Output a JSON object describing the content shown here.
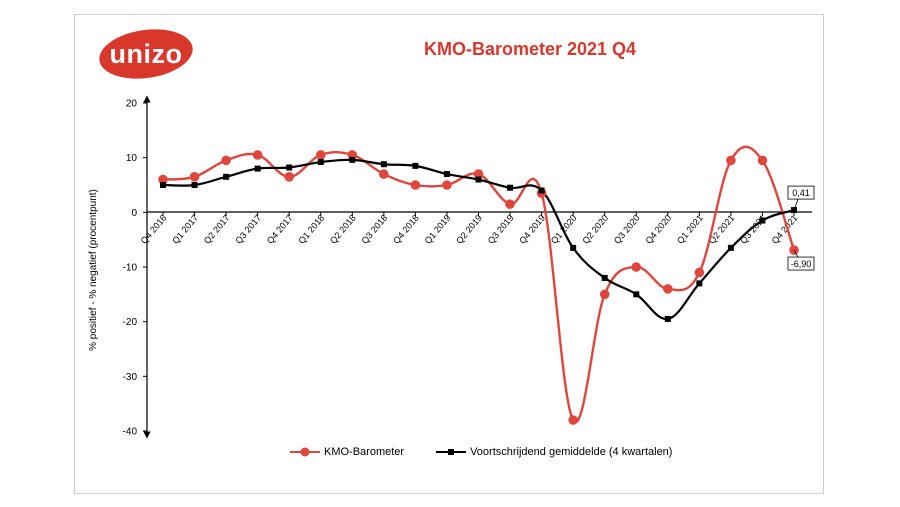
{
  "logo": {
    "text": "unizo",
    "color": "#d9372b"
  },
  "chart_data": {
    "type": "line",
    "title": "KMO-Barometer 2021 Q4",
    "xlabel": "",
    "ylabel": "% positief - % negatief (procentpunt)",
    "ylim": [
      -40,
      20
    ],
    "yticks": [
      "20",
      "10",
      "0",
      "-10",
      "-20",
      "-30",
      "-40"
    ],
    "categories": [
      "Q4 2016",
      "Q1 2017",
      "Q2 2017",
      "Q3 2017",
      "Q4 2017",
      "Q1 2018",
      "Q2 2018",
      "Q3 2018",
      "Q4 2018",
      "Q1 2019",
      "Q2 2019",
      "Q3 2019",
      "Q4 2019",
      "Q1 2020",
      "Q2 2020",
      "Q3 2020",
      "Q4 2020",
      "Q1 2021",
      "Q2 2021",
      "Q3 2021",
      "Q4 2021"
    ],
    "series": [
      {
        "name": "KMO-Barometer",
        "color": "#e0463c",
        "marker": "circle",
        "values": [
          6,
          6.5,
          9.5,
          10.5,
          6.5,
          10.5,
          10.5,
          7,
          5,
          5,
          7,
          1.5,
          3.5,
          -38,
          -15,
          -10,
          -14,
          -11,
          9.5,
          9.5,
          -6.9
        ]
      },
      {
        "name": "Voortschrijdend gemiddelde (4 kwartalen)",
        "color": "#000000",
        "marker": "square",
        "values": [
          5,
          5,
          6.5,
          8,
          8.2,
          9.2,
          9.6,
          8.8,
          8.5,
          7,
          6,
          4.5,
          4,
          -6.5,
          -12,
          -15,
          -19.5,
          -13,
          -6.5,
          -1.5,
          0.41
        ]
      }
    ],
    "annotations": [
      {
        "label": "0,41",
        "series": 1,
        "index": 20
      },
      {
        "label": "-6,90",
        "series": 0,
        "index": 20
      }
    ],
    "legend": "bottom",
    "grid": false
  }
}
